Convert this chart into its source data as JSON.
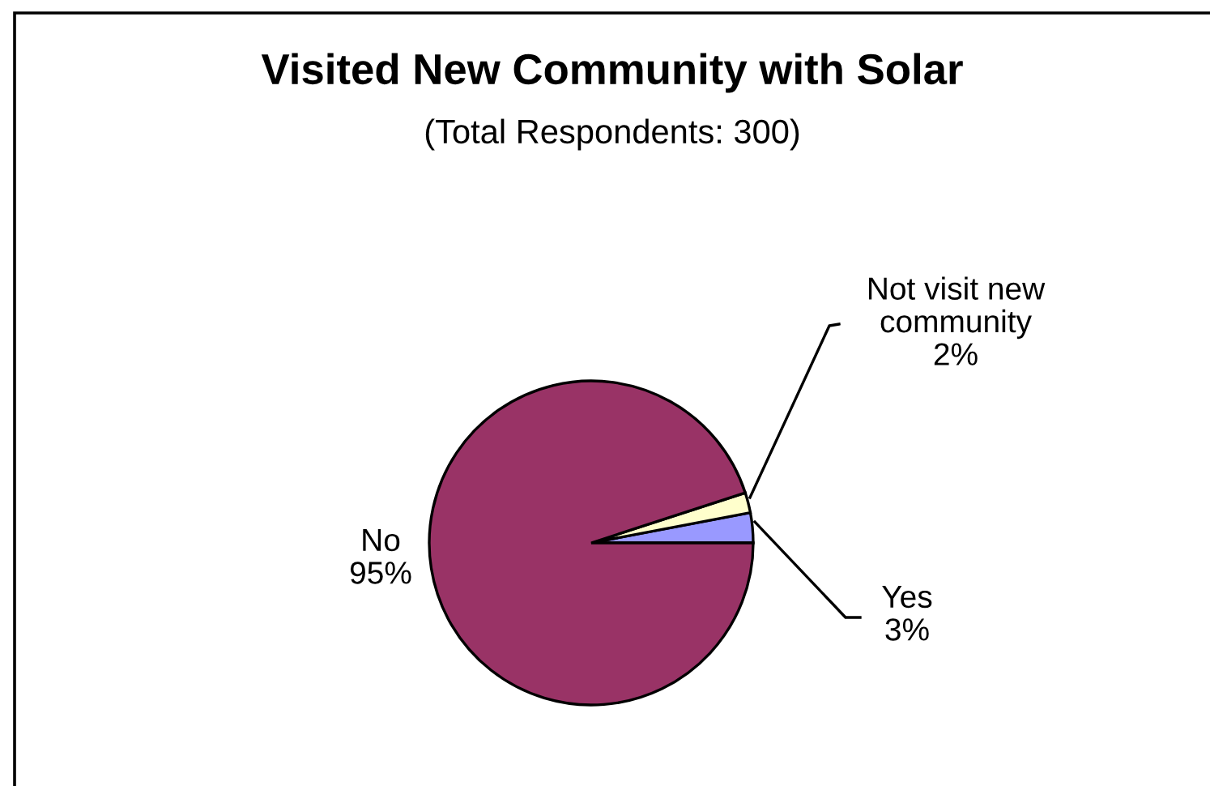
{
  "chart_data": {
    "type": "pie",
    "title": "Visited New Community with Solar",
    "subtitle": "(Total Respondents: 300)",
    "categories": [
      "Yes",
      "Not visit new\ncommunity",
      "No"
    ],
    "values": [
      3,
      2,
      95
    ],
    "value_labels": [
      "3%",
      "2%",
      "95%"
    ],
    "colors": [
      "#9999ff",
      "#ffffcc",
      "#993366"
    ],
    "legend": false
  }
}
